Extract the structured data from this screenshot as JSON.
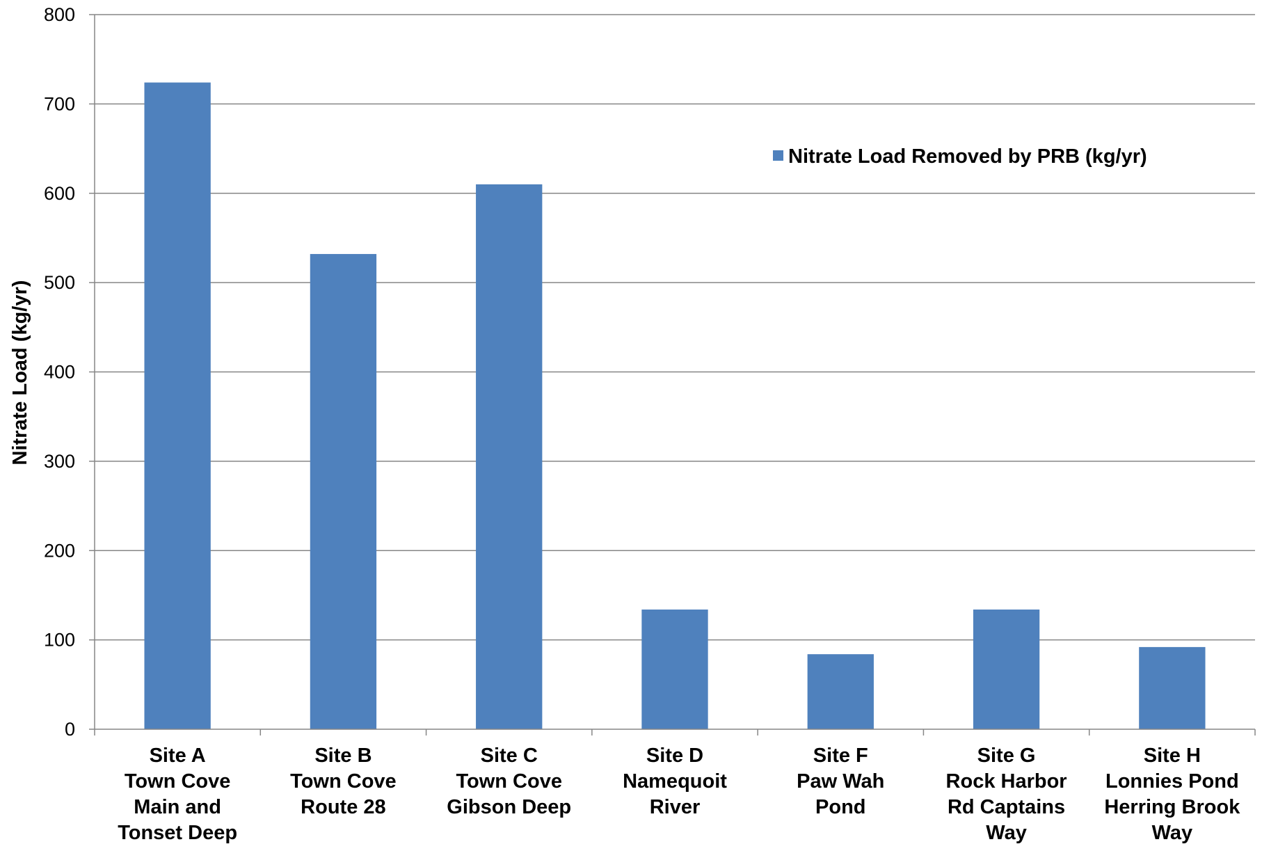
{
  "chart_data": {
    "type": "bar",
    "categories": [
      [
        "Site A",
        "Town Cove",
        "Main and",
        "Tonset Deep"
      ],
      [
        "Site B",
        "Town Cove",
        "Route 28"
      ],
      [
        "Site C",
        "Town Cove",
        "Gibson Deep"
      ],
      [
        "Site D",
        "Namequoit",
        "River"
      ],
      [
        "Site F",
        "Paw Wah",
        "Pond"
      ],
      [
        "Site G",
        "Rock Harbor",
        "Rd Captains",
        "Way"
      ],
      [
        "Site H",
        "Lonnies Pond",
        "Herring Brook",
        "Way"
      ]
    ],
    "series": [
      {
        "name": "Nitrate Load Removed by PRB (kg/yr)",
        "values": [
          724,
          532,
          610,
          134,
          84,
          134,
          92
        ],
        "color": "#4F81BD"
      }
    ],
    "title": "",
    "xlabel": "",
    "ylabel": "Nitrate Load (kg/yr)",
    "ylim": [
      0,
      800
    ],
    "yticks": [
      0,
      100,
      200,
      300,
      400,
      500,
      600,
      700,
      800
    ],
    "grid": true,
    "legend_position": "top-right",
    "colors": {
      "bar": "#4F81BD",
      "grid": "#868686",
      "axis": "#868686"
    }
  }
}
